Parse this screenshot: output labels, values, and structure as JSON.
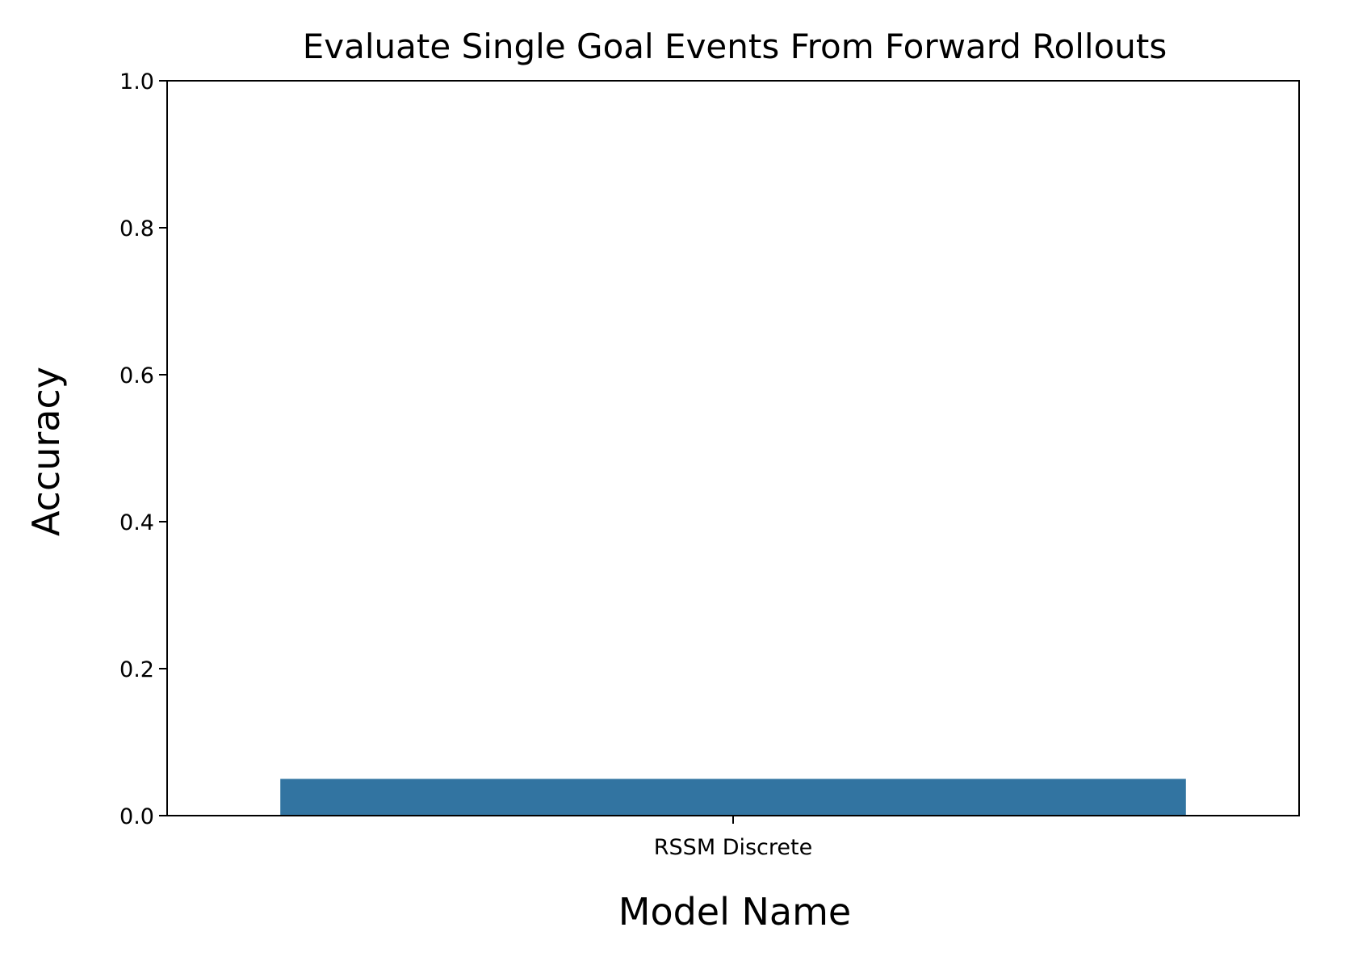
{
  "chart_data": {
    "type": "bar",
    "title": "Evaluate Single Goal Events From Forward Rollouts",
    "xlabel": "Model Name",
    "ylabel": "Accuracy",
    "categories": [
      "RSSM Discrete"
    ],
    "values": [
      0.05
    ],
    "ylim": [
      0,
      1
    ],
    "yticks": [
      "0.0",
      "0.2",
      "0.4",
      "0.6",
      "0.8",
      "1.0"
    ],
    "grid": false,
    "legend": "none",
    "colors": {
      "bar": "#3274a1",
      "axes": "#000000",
      "background": "#ffffff"
    }
  }
}
